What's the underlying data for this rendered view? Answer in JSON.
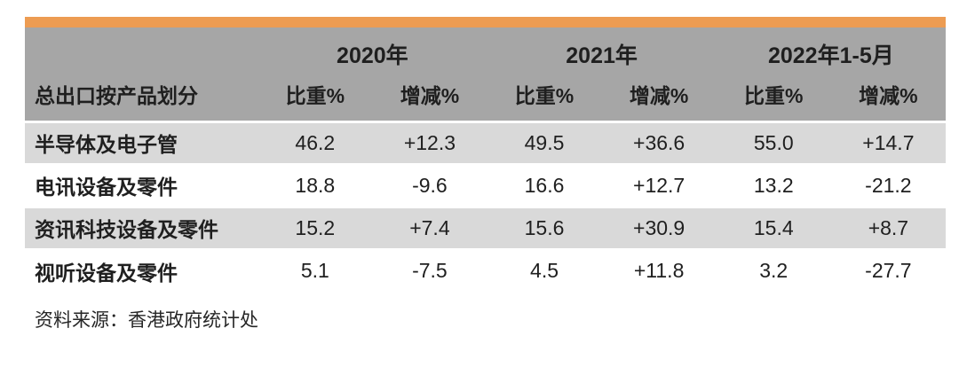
{
  "chart_data": {
    "type": "table",
    "row_header": "总出口按产品划分",
    "column_groups": [
      {
        "label": "2020年",
        "columns": [
          "比重%",
          "增减%"
        ]
      },
      {
        "label": "2021年",
        "columns": [
          "比重%",
          "增减%"
        ]
      },
      {
        "label": "2022年1-5月",
        "columns": [
          "比重%",
          "增减%"
        ]
      }
    ],
    "rows": [
      {
        "label": "半导体及电子管",
        "values": [
          "46.2",
          "+12.3",
          "49.5",
          "+36.6",
          "55.0",
          "+14.7"
        ]
      },
      {
        "label": "电讯设备及零件",
        "values": [
          "18.8",
          "-9.6",
          "16.6",
          "+12.7",
          "13.2",
          "-21.2"
        ]
      },
      {
        "label": "资讯科技设备及零件",
        "values": [
          "15.2",
          "+7.4",
          "15.6",
          "+30.9",
          "15.4",
          "+8.7"
        ]
      },
      {
        "label": "视听设备及零件",
        "values": [
          "5.1",
          "-7.5",
          "4.5",
          "+11.8",
          "3.2",
          "-27.7"
        ]
      }
    ],
    "source": "资料来源：香港政府统计处"
  },
  "colors": {
    "accent_orange": "#ED9C52",
    "header_gray": "#A6A6A6",
    "row_alt_gray": "#D9D9D9",
    "text": "#1F1F1F"
  }
}
